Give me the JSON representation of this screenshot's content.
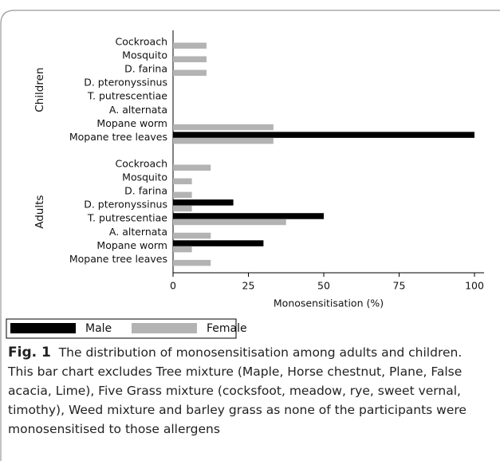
{
  "chart_data": {
    "type": "bar",
    "orientation": "horizontal",
    "groups": [
      {
        "label": "Children",
        "categories": [
          "Cockroach",
          "Mosquito",
          "D. farina",
          "D. pteronyssinus",
          "T. putrescentiae",
          "A. alternata",
          "Mopane worm",
          "Mopane tree leaves"
        ]
      },
      {
        "label": "Adults",
        "categories": [
          "Cockroach",
          "Mosquito",
          "D. farina",
          "D. pteronyssinus",
          "T. putrescentiae",
          "A. alternata",
          "Mopane worm",
          "Mopane tree leaves"
        ]
      }
    ],
    "series": [
      {
        "name": "Male",
        "color": "#000000",
        "values": [
          0,
          0,
          0,
          0,
          0,
          0,
          0,
          100,
          0,
          0,
          0,
          20,
          50,
          0,
          30,
          0
        ]
      },
      {
        "name": "Female",
        "color": "#b3b3b3",
        "values": [
          11.1,
          11.1,
          11.1,
          0,
          0,
          0,
          33.3,
          33.3,
          12.5,
          6.25,
          6.25,
          6.25,
          37.5,
          12.5,
          6.25,
          12.5
        ]
      }
    ],
    "xlabel": "Monosensitisation (%)",
    "xlim": [
      0,
      100
    ],
    "xticks": [
      0,
      25,
      50,
      75,
      100
    ]
  },
  "caption": {
    "label": "Fig. 1",
    "text": "The distribution of monosensitisation among adults and children. This bar chart excludes Tree mixture (Maple, Horse chestnut, Plane, False acacia, Lime), Five Grass mixture (cocksfoot, meadow, rye, sweet vernal, timothy), Weed mixture and barley grass as none of the participants were monosensitised to those allergens"
  }
}
